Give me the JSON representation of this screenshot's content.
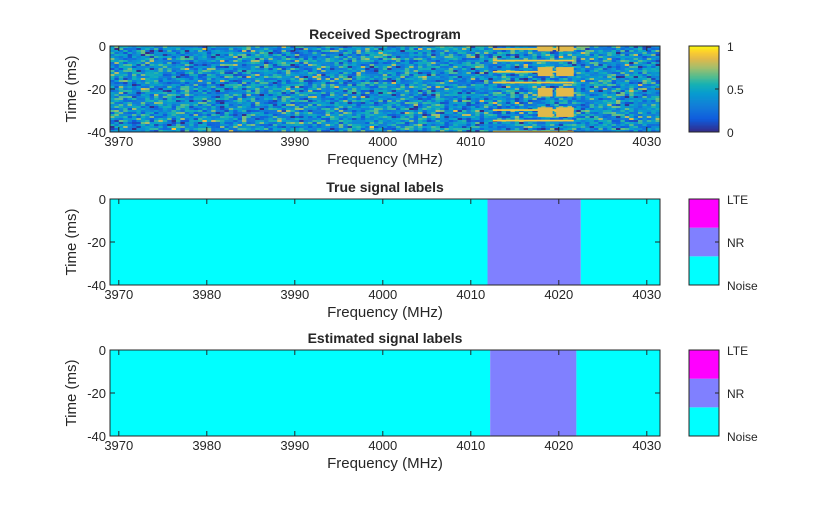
{
  "chart_data": [
    {
      "type": "heatmap",
      "title": "Received Spectrogram",
      "xlabel": "Frequency (MHz)",
      "ylabel": "Time (ms)",
      "xlim": [
        3969,
        4031.5
      ],
      "ylim": [
        -40,
        0
      ],
      "xticks": [
        3970,
        3980,
        3990,
        4000,
        4010,
        4020,
        4030
      ],
      "yticks": [
        0,
        -20,
        -40
      ],
      "colormap": "parula",
      "colorbar": {
        "ticks": [
          0,
          0.5,
          1
        ],
        "labels": [
          "0",
          "0.5",
          "1"
        ]
      },
      "noise_level": 0.4,
      "signal_bursts": [
        {
          "freq": [
            4012.5,
            4021.7
          ],
          "time": [
            -1.0,
            -1.8
          ],
          "value": 0.9
        },
        {
          "freq": [
            4017.6,
            4019.3
          ],
          "time": [
            0,
            -2.5
          ],
          "value": 0.85
        },
        {
          "freq": [
            4019.7,
            4021.7
          ],
          "time": [
            0,
            -2.5
          ],
          "value": 0.85
        },
        {
          "freq": [
            4012.5,
            4021.7
          ],
          "time": [
            -6.4,
            -7.2
          ],
          "value": 0.9
        },
        {
          "freq": [
            4012.5,
            4021.7
          ],
          "time": [
            -11.6,
            -12.4
          ],
          "value": 0.9
        },
        {
          "freq": [
            4017.6,
            4019.3
          ],
          "time": [
            -9.8,
            -14.0
          ],
          "value": 0.85
        },
        {
          "freq": [
            4019.7,
            4021.7
          ],
          "time": [
            -9.8,
            -14.0
          ],
          "value": 0.85
        },
        {
          "freq": [
            4012.5,
            4021.7
          ],
          "time": [
            -16.6,
            -17.4
          ],
          "value": 0.9
        },
        {
          "freq": [
            4017.6,
            4019.3
          ],
          "time": [
            -19.5,
            -23.5
          ],
          "value": 0.85
        },
        {
          "freq": [
            4019.7,
            4021.7
          ],
          "time": [
            -19.5,
            -23.5
          ],
          "value": 0.85
        },
        {
          "freq": [
            4012.5,
            4021.7
          ],
          "time": [
            -29.4,
            -30.2
          ],
          "value": 0.9
        },
        {
          "freq": [
            4017.6,
            4019.3
          ],
          "time": [
            -28.5,
            -33.0
          ],
          "value": 0.85
        },
        {
          "freq": [
            4019.7,
            4021.7
          ],
          "time": [
            -28.5,
            -33.0
          ],
          "value": 0.85
        },
        {
          "freq": [
            4012.5,
            4021.7
          ],
          "time": [
            -34.3,
            -35.1
          ],
          "value": 0.9
        },
        {
          "freq": [
            4012.5,
            4021.7
          ],
          "time": [
            -39.4,
            -40.0
          ],
          "value": 0.9
        }
      ]
    },
    {
      "type": "heatmap",
      "title": "True signal labels",
      "xlabel": "Frequency (MHz)",
      "ylabel": "Time (ms)",
      "xlim": [
        3969,
        4031.5
      ],
      "ylim": [
        -40,
        0
      ],
      "xticks": [
        3970,
        3980,
        3990,
        4000,
        4010,
        4020,
        4030
      ],
      "yticks": [
        0,
        -20,
        -40
      ],
      "classes": [
        "Noise",
        "NR",
        "LTE"
      ],
      "class_colors": {
        "Noise": "#00ffff",
        "NR": "#8080ff",
        "LTE": "#ff00ff"
      },
      "regions": [
        {
          "label": "Noise",
          "freq": [
            3969,
            4011.9
          ]
        },
        {
          "label": "NR",
          "freq": [
            4011.9,
            4022.5
          ]
        },
        {
          "label": "Noise",
          "freq": [
            4022.5,
            4031.5
          ]
        }
      ]
    },
    {
      "type": "heatmap",
      "title": "Estimated signal labels",
      "xlabel": "Frequency (MHz)",
      "ylabel": "Time (ms)",
      "xlim": [
        3969,
        4031.5
      ],
      "ylim": [
        -40,
        0
      ],
      "xticks": [
        3970,
        3980,
        3990,
        4000,
        4010,
        4020,
        4030
      ],
      "yticks": [
        0,
        -20,
        -40
      ],
      "classes": [
        "Noise",
        "NR",
        "LTE"
      ],
      "class_colors": {
        "Noise": "#00ffff",
        "NR": "#8080ff",
        "LTE": "#ff00ff"
      },
      "regions": [
        {
          "label": "Noise",
          "freq": [
            3969,
            4012.2
          ]
        },
        {
          "label": "NR",
          "freq": [
            4012.2,
            4022.0
          ]
        },
        {
          "label": "Noise",
          "freq": [
            4022.0,
            4031.5
          ]
        }
      ]
    }
  ]
}
